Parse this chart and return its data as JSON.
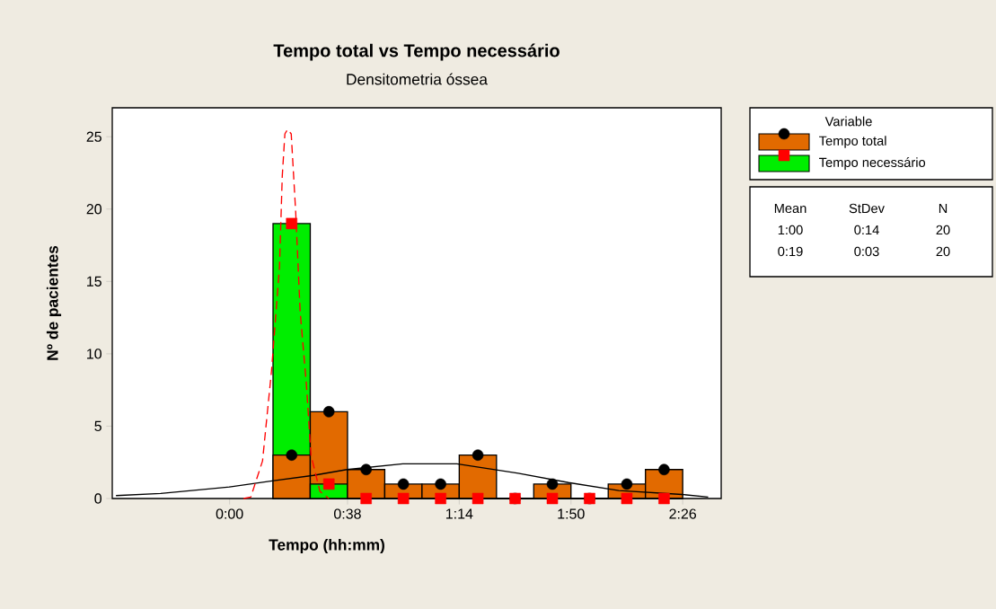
{
  "chart_data": {
    "type": "histogram",
    "title": "Tempo total vs Tempo necessário",
    "subtitle": "Densitometria óssea",
    "xlabel": "Tempo (hh:mm)",
    "ylabel": "Nº de pacientes",
    "legend_title": "Variable",
    "legend": "right",
    "grid": false,
    "bins": [
      0.2333,
      0.4333,
      0.6333,
      0.8333,
      1.0333,
      1.2333,
      1.4333,
      1.6333,
      1.8333,
      2.0333,
      2.2333,
      2.4333
    ],
    "series": [
      {
        "name": "Tempo total",
        "color": "#e26a00",
        "values": [
          3,
          6,
          2,
          1,
          1,
          3,
          0,
          1,
          0,
          1,
          2
        ]
      },
      {
        "name": "Tempo necessário",
        "color": "#00ee00",
        "values": [
          19,
          1,
          0,
          0,
          0,
          0,
          0,
          0,
          0,
          0,
          0
        ]
      },
      {
        "type": "scatter",
        "color": "#000000",
        "marker": "circle",
        "x": [
          0.3333,
          0.5333,
          0.7333,
          0.9333,
          1.1333,
          1.3333,
          1.5333,
          1.7333,
          1.9333,
          2.1333,
          2.3333
        ],
        "values": [
          3,
          6,
          2,
          1,
          1,
          3,
          0,
          1,
          0,
          1,
          2
        ]
      },
      {
        "type": "scatter",
        "color": "#ff0000",
        "marker": "square",
        "x": [
          0.3333,
          0.5333,
          0.7333,
          0.9333,
          1.1333,
          1.3333,
          1.5333,
          1.7333,
          1.9333,
          2.1333,
          2.3333
        ],
        "values": [
          19,
          1,
          0,
          0,
          0,
          0,
          0,
          0,
          0,
          0,
          0
        ]
      },
      {
        "type": "line",
        "color": "#000000",
        "line_style": "solid",
        "x": [
          -0.61,
          -0.37,
          0.0,
          0.22,
          0.45,
          0.63,
          0.93,
          1.22,
          1.55,
          1.82,
          2.09,
          2.43,
          2.57
        ],
        "values": [
          0.2,
          0.35,
          0.8,
          1.2,
          1.6,
          2.0,
          2.4,
          2.4,
          1.75,
          1.1,
          0.55,
          0.28,
          0.1
        ]
      },
      {
        "type": "line",
        "color": "#ff0000",
        "line_style": "dashed",
        "x": [
          0.075,
          0.114,
          0.177,
          0.225,
          0.268,
          0.283,
          0.297,
          0.311,
          0.331,
          0.355,
          0.379,
          0.413,
          0.437,
          0.485,
          0.533
        ],
        "values": [
          0,
          0.1,
          2.6,
          8.8,
          16,
          22.3,
          25.2,
          25.5,
          25.2,
          19.8,
          12.9,
          7.8,
          3.0,
          0.5,
          0
        ]
      }
    ],
    "xlim": [
      -0.63,
      2.64
    ],
    "ylim": [
      0,
      27
    ],
    "xticks": [
      {
        "value": 0,
        "label": "0:00"
      },
      {
        "value": 0.6333,
        "label": "0:38"
      },
      {
        "value": 1.2333,
        "label": "1:14"
      },
      {
        "value": 1.8333,
        "label": "1:50"
      },
      {
        "value": 2.4333,
        "label": "2:26"
      }
    ],
    "yticks": [
      0,
      5,
      10,
      15,
      20,
      25
    ],
    "annotations": [
      "Mean",
      "StDev",
      "N",
      "1:00",
      "0:14",
      "20",
      "0:19",
      "0:03",
      "20"
    ]
  }
}
